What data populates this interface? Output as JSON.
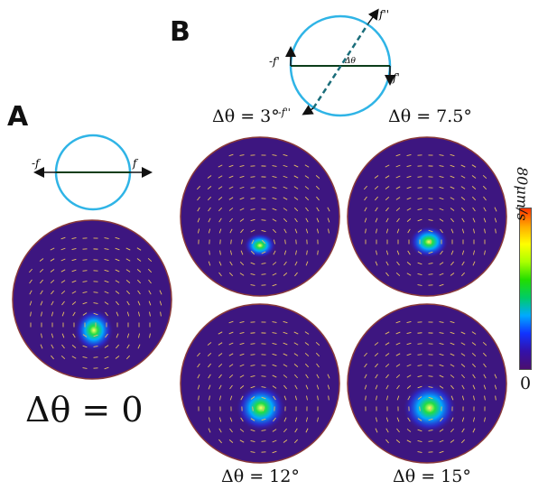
{
  "panel_a": {
    "letter": "A",
    "schematic": {
      "force_left": "-f",
      "force_right": "f"
    },
    "caption": "Δθ = 0"
  },
  "panel_b": {
    "letter": "B",
    "schematic": {
      "force_left": "-f'",
      "force_right": "f'",
      "force_top": "f''",
      "force_bottom": "-f''",
      "angle_label": "Δθ"
    },
    "disks": [
      {
        "caption": "Δθ = 3°"
      },
      {
        "caption": "Δθ = 7.5°"
      },
      {
        "caption": "Δθ = 12°"
      },
      {
        "caption": "Δθ = 15°"
      }
    ]
  },
  "colorbar": {
    "max_label": "80μm/s",
    "min_label": "0",
    "stops": [
      "#ff3300",
      "#ffaa00",
      "#ffff00",
      "#aaff00",
      "#22dd00",
      "#00cc66",
      "#00aaff",
      "#1133ff",
      "#3311aa",
      "#4b0f6e"
    ]
  },
  "colors": {
    "disk_fill": "#3d1680",
    "disk_rim": "#8a3a3a",
    "arrow": "#e8c060",
    "circle": "#2fb4e6",
    "diameter": "#0b3d1a",
    "dashed": "#1a6d7a"
  }
}
